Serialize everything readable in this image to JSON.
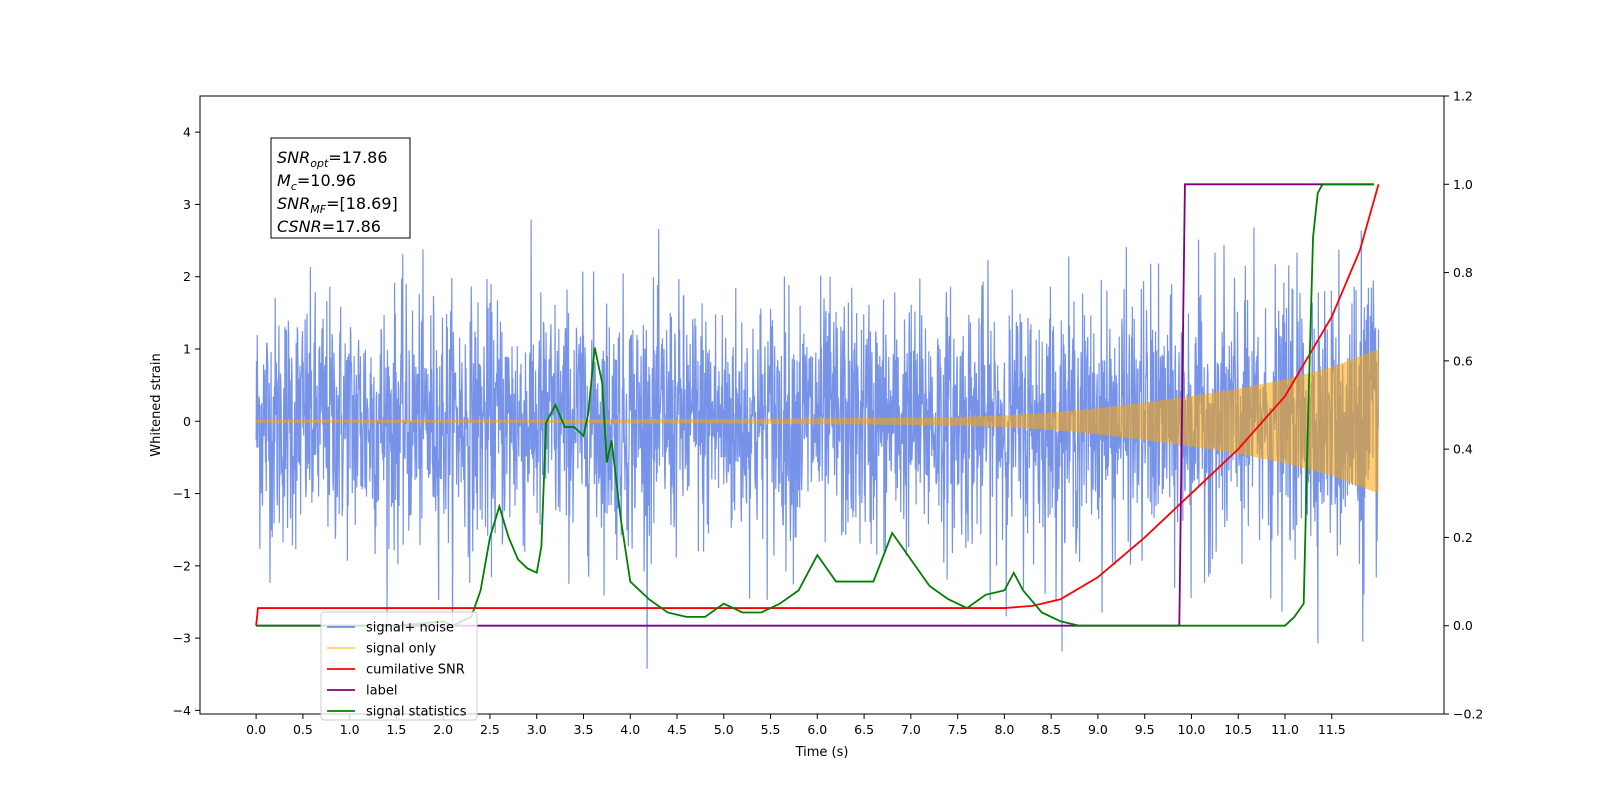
{
  "chart_data": {
    "type": "line",
    "title": "",
    "xlabel": "Time (s)",
    "ylabel": "Whitened strain",
    "ylabel_right": "",
    "xlim": [
      -0.6,
      12.7
    ],
    "ylim_left": [
      -4.05,
      4.5
    ],
    "ylim_right": [
      -0.2,
      1.2
    ],
    "x_ticks": [
      "0.0",
      "0.5",
      "1.0",
      "1.5",
      "2.0",
      "2.5",
      "3.0",
      "3.5",
      "4.0",
      "4.5",
      "5.0",
      "5.5",
      "6.0",
      "6.5",
      "7.0",
      "7.5",
      "8.0",
      "8.5",
      "9.0",
      "9.5",
      "10.0",
      "10.5",
      "11.0",
      "11.5"
    ],
    "y_ticks_left": [
      "4",
      "3",
      "2",
      "1",
      "0",
      "−1",
      "−2",
      "−3",
      "−4"
    ],
    "y_ticks_right": [
      "1.2",
      "1.0",
      "0.8",
      "0.6",
      "0.4",
      "0.2",
      "0.0",
      "−0.2"
    ],
    "grid": false,
    "legend_position": "lower-left",
    "annotation": {
      "lines": [
        {
          "symbol": "SNR",
          "sub": "opt",
          "value": "=17.86"
        },
        {
          "symbol": "M",
          "sub": "c",
          "value": "=10.96"
        },
        {
          "symbol": "SNR",
          "sub": "MF",
          "value": "=[18.69]"
        },
        {
          "symbol": "CSNR",
          "sub": "",
          "value": "=17.86"
        }
      ]
    },
    "series": [
      {
        "name": "signal+ noise",
        "axis": "left",
        "color": "#4169e1",
        "description_noise_std": 0.85,
        "x_range": [
          0.0,
          12.0
        ]
      },
      {
        "name": "signal only",
        "axis": "left",
        "color": "#ffa500",
        "envelope_x": [
          0,
          1,
          2,
          3,
          4,
          5,
          6,
          7,
          7.5,
          8,
          8.5,
          9,
          9.5,
          10,
          10.5,
          11,
          11.5,
          12
        ],
        "envelope_y": [
          0.02,
          0.02,
          0.02,
          0.02,
          0.03,
          0.03,
          0.04,
          0.05,
          0.06,
          0.08,
          0.12,
          0.18,
          0.26,
          0.35,
          0.45,
          0.58,
          0.75,
          1.0
        ]
      },
      {
        "name": "cumilative SNR",
        "axis": "right",
        "color": "#ff0000",
        "x": [
          0.0,
          0.02,
          8.0,
          8.3,
          8.6,
          9.0,
          9.5,
          10.0,
          10.5,
          11.0,
          11.5,
          11.8,
          12.0
        ],
        "y": [
          0.0,
          0.04,
          0.04,
          0.045,
          0.06,
          0.11,
          0.2,
          0.3,
          0.4,
          0.52,
          0.7,
          0.85,
          1.0
        ]
      },
      {
        "name": "label",
        "axis": "right",
        "color": "#800080",
        "x": [
          0.0,
          9.87,
          9.93,
          11.95
        ],
        "y": [
          0.0,
          0.0,
          1.0,
          1.0
        ]
      },
      {
        "name": "signal statistics",
        "axis": "right",
        "color": "#008000",
        "x": [
          0.0,
          0.5,
          1.0,
          1.5,
          2.0,
          2.1,
          2.2,
          2.3,
          2.4,
          2.5,
          2.6,
          2.7,
          2.8,
          2.9,
          3.0,
          3.05,
          3.1,
          3.2,
          3.3,
          3.4,
          3.5,
          3.55,
          3.62,
          3.7,
          3.75,
          3.8,
          3.9,
          4.0,
          4.2,
          4.4,
          4.6,
          4.8,
          5.0,
          5.2,
          5.4,
          5.6,
          5.8,
          6.0,
          6.2,
          6.4,
          6.6,
          6.8,
          7.0,
          7.2,
          7.4,
          7.6,
          7.8,
          8.0,
          8.1,
          8.2,
          8.4,
          8.6,
          8.8,
          9.0,
          9.5,
          10.0,
          10.5,
          11.0,
          11.1,
          11.2,
          11.25,
          11.3,
          11.35,
          11.4,
          11.95
        ],
        "y": [
          0.0,
          0.0,
          0.0,
          0.0,
          0.01,
          0.0,
          0.01,
          0.02,
          0.08,
          0.2,
          0.27,
          0.2,
          0.15,
          0.13,
          0.12,
          0.18,
          0.46,
          0.5,
          0.45,
          0.45,
          0.43,
          0.48,
          0.63,
          0.55,
          0.37,
          0.42,
          0.24,
          0.1,
          0.06,
          0.03,
          0.02,
          0.02,
          0.05,
          0.03,
          0.03,
          0.05,
          0.08,
          0.16,
          0.1,
          0.1,
          0.1,
          0.21,
          0.15,
          0.09,
          0.06,
          0.04,
          0.07,
          0.08,
          0.12,
          0.08,
          0.03,
          0.01,
          0.0,
          0.0,
          0.0,
          0.0,
          0.0,
          0.0,
          0.02,
          0.05,
          0.5,
          0.88,
          0.98,
          1.0,
          1.0
        ]
      }
    ]
  }
}
